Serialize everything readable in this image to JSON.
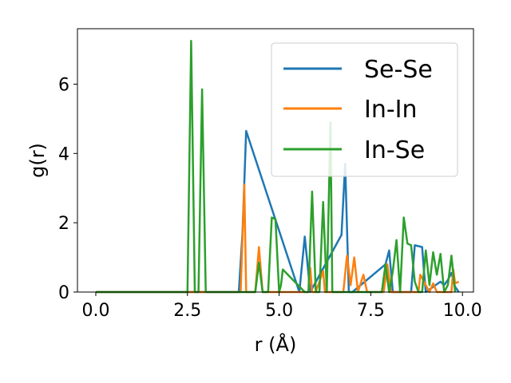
{
  "chart_data": {
    "type": "line",
    "xlabel": "r (Å)",
    "ylabel": "g(r)",
    "xlim": [
      -0.5,
      10.3
    ],
    "ylim": [
      0,
      7.6
    ],
    "xticks": [
      "0.0",
      "2.5",
      "5.0",
      "7.5",
      "10.0"
    ],
    "yticks": [
      "0",
      "2",
      "4",
      "6"
    ],
    "grid": false,
    "legend_placement": "top-right",
    "series": [
      {
        "name": "Se-Se",
        "color": "#1f77b4",
        "x": [
          0,
          3.9,
          4.0,
          4.1,
          5.55,
          5.7,
          5.85,
          6.7,
          6.8,
          6.9,
          7.0,
          7.9,
          8.0,
          8.1,
          8.15,
          8.6,
          8.7,
          8.9,
          8.95,
          9.0,
          9.4,
          9.5,
          9.6,
          9.7,
          9.8,
          9.9
        ],
        "y": [
          0,
          0,
          1.7,
          4.65,
          0,
          1.6,
          0,
          1.65,
          3.7,
          0,
          0,
          0.8,
          1.2,
          0,
          0,
          0,
          1.35,
          1.3,
          0.6,
          0,
          0.3,
          0.2,
          0.35,
          0.55,
          0.15,
          0
        ]
      },
      {
        "name": "In-In",
        "color": "#ff7f0e",
        "x": [
          0,
          3.95,
          4.05,
          4.1,
          4.35,
          4.45,
          4.55,
          5.8,
          5.85,
          5.9,
          6.0,
          6.2,
          6.25,
          6.3,
          6.75,
          6.85,
          6.95,
          7.05,
          7.15,
          7.3,
          7.4,
          7.5,
          7.85,
          7.95,
          8.05,
          8.15,
          8.8,
          8.85,
          9.1,
          9.2,
          9.3,
          9.7,
          9.75,
          9.8,
          9.9
        ],
        "y": [
          0,
          0,
          3.1,
          0,
          0,
          1.3,
          0,
          0,
          0.7,
          0,
          0,
          0.6,
          0,
          0,
          0,
          1.05,
          0.2,
          1.0,
          0,
          0.5,
          0,
          0,
          0,
          0.8,
          0,
          0,
          0,
          0.5,
          0,
          0.25,
          0,
          0,
          0.65,
          0.25,
          0.3
        ]
      },
      {
        "name": "In-Se",
        "color": "#2ca02c",
        "x": [
          0,
          2.5,
          2.6,
          2.7,
          2.8,
          2.9,
          3.0,
          4.35,
          4.45,
          4.55,
          4.7,
          4.8,
          4.9,
          5.0,
          5.05,
          5.1,
          5.7,
          5.8,
          5.9,
          6.0,
          6.1,
          6.2,
          6.3,
          6.4,
          6.45,
          7.7,
          7.8,
          7.9,
          8.0,
          8.1,
          8.2,
          8.3,
          8.4,
          8.5,
          8.6,
          8.7,
          8.8,
          8.9,
          9.0,
          9.1,
          9.2,
          9.3,
          9.4,
          9.5,
          9.6,
          9.7,
          9.8
        ],
        "y": [
          0,
          0,
          7.25,
          0,
          0,
          5.85,
          0,
          0,
          0.85,
          0,
          0,
          2.15,
          2.1,
          0,
          0.2,
          0.65,
          0,
          0,
          2.9,
          0,
          0,
          2.6,
          0,
          4.9,
          0,
          0,
          0,
          0.8,
          0,
          0.6,
          1.5,
          0,
          2.15,
          1.4,
          1.35,
          0.3,
          0,
          0,
          1.2,
          0.2,
          1.15,
          0.5,
          1.1,
          0,
          0.2,
          1.05,
          0
        ]
      }
    ]
  }
}
